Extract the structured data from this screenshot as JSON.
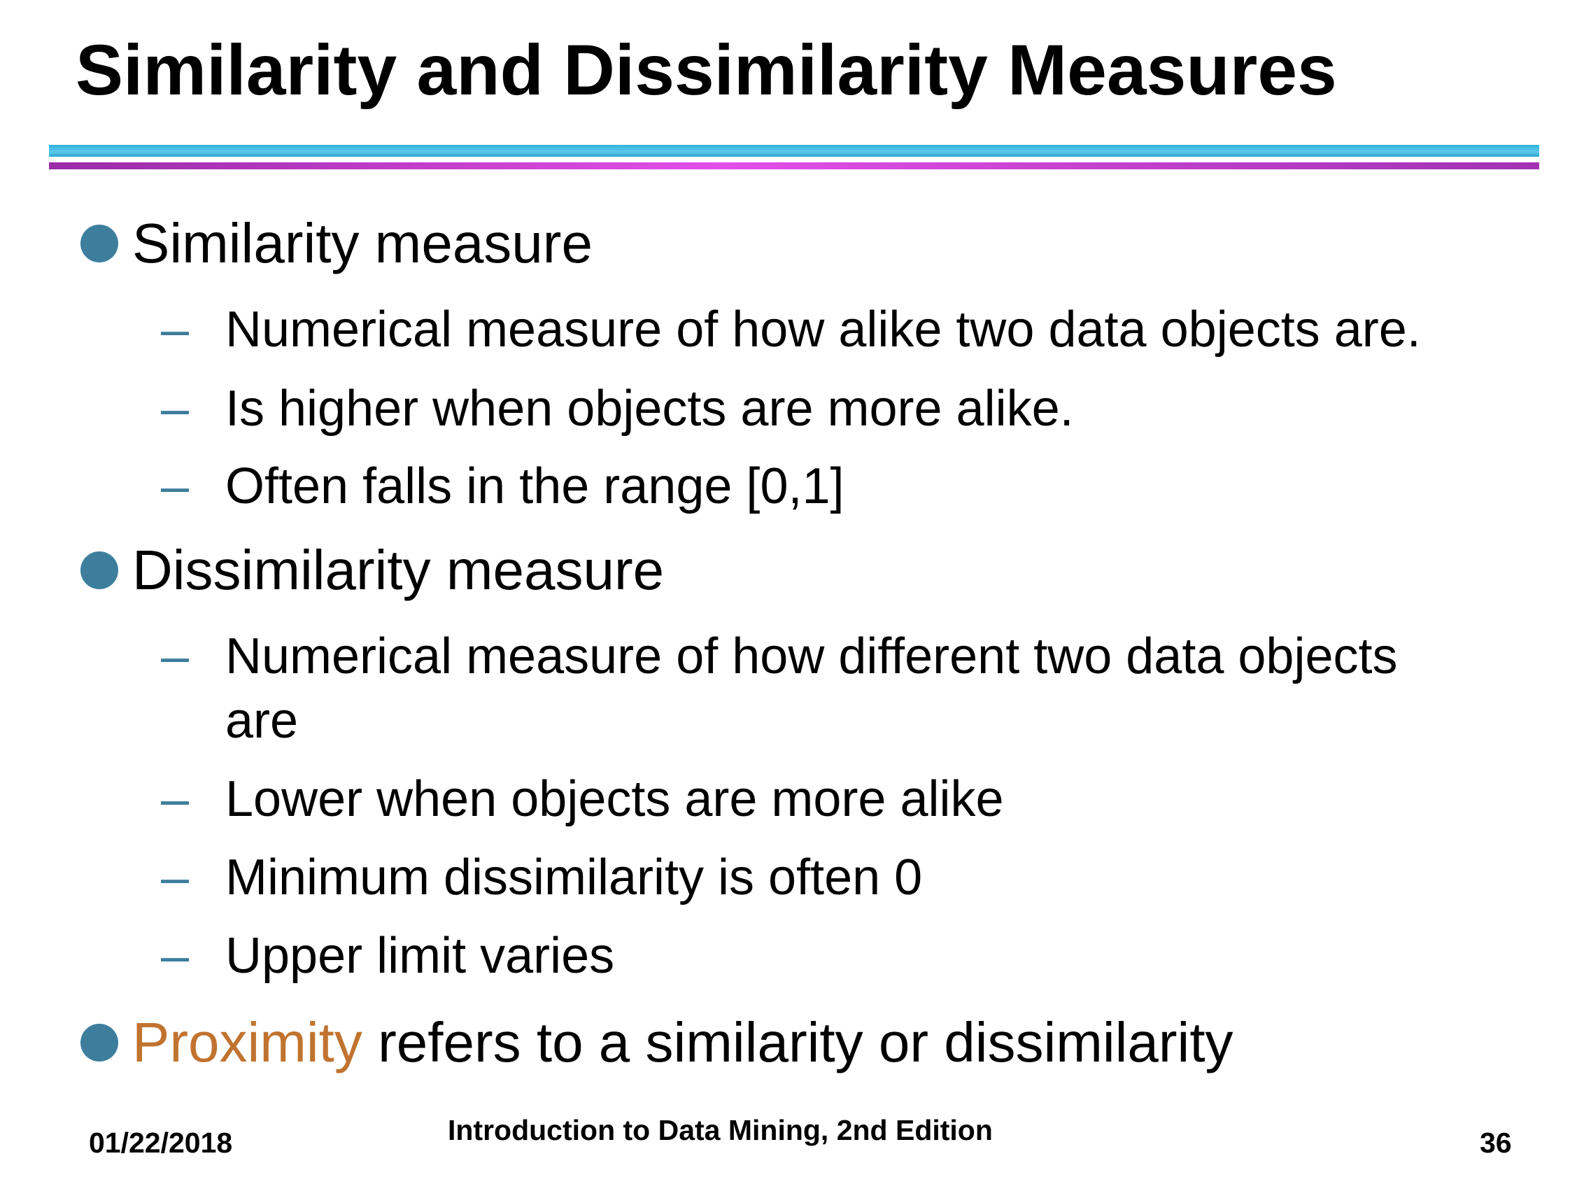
{
  "slide": {
    "title": "Similarity and Dissimilarity Measures",
    "colors": {
      "bullet": "#3d7e9d",
      "dash": "#3d7e9d",
      "highlight": "#c0732f",
      "rule_top": "#5cc8ea",
      "rule_bottom": "#e24fe8"
    },
    "bullets": [
      {
        "text": "Similarity measure",
        "subs": [
          "Numerical measure of how alike two data objects are.",
          "Is higher when objects are more alike.",
          "Often falls in the range [0,1]"
        ]
      },
      {
        "text": "Dissimilarity measure",
        "subs": [
          "Numerical measure of how different two data objects",
          "are",
          "Lower when objects are more alike",
          "Minimum dissimilarity is often 0",
          "Upper limit varies"
        ]
      },
      {
        "highlight": "Proximity",
        "rest": " refers to a similarity or dissimilarity"
      }
    ]
  },
  "footer": {
    "date": "01/22/2018",
    "center": "Introduction to Data Mining, 2nd Edition",
    "page": "36"
  }
}
